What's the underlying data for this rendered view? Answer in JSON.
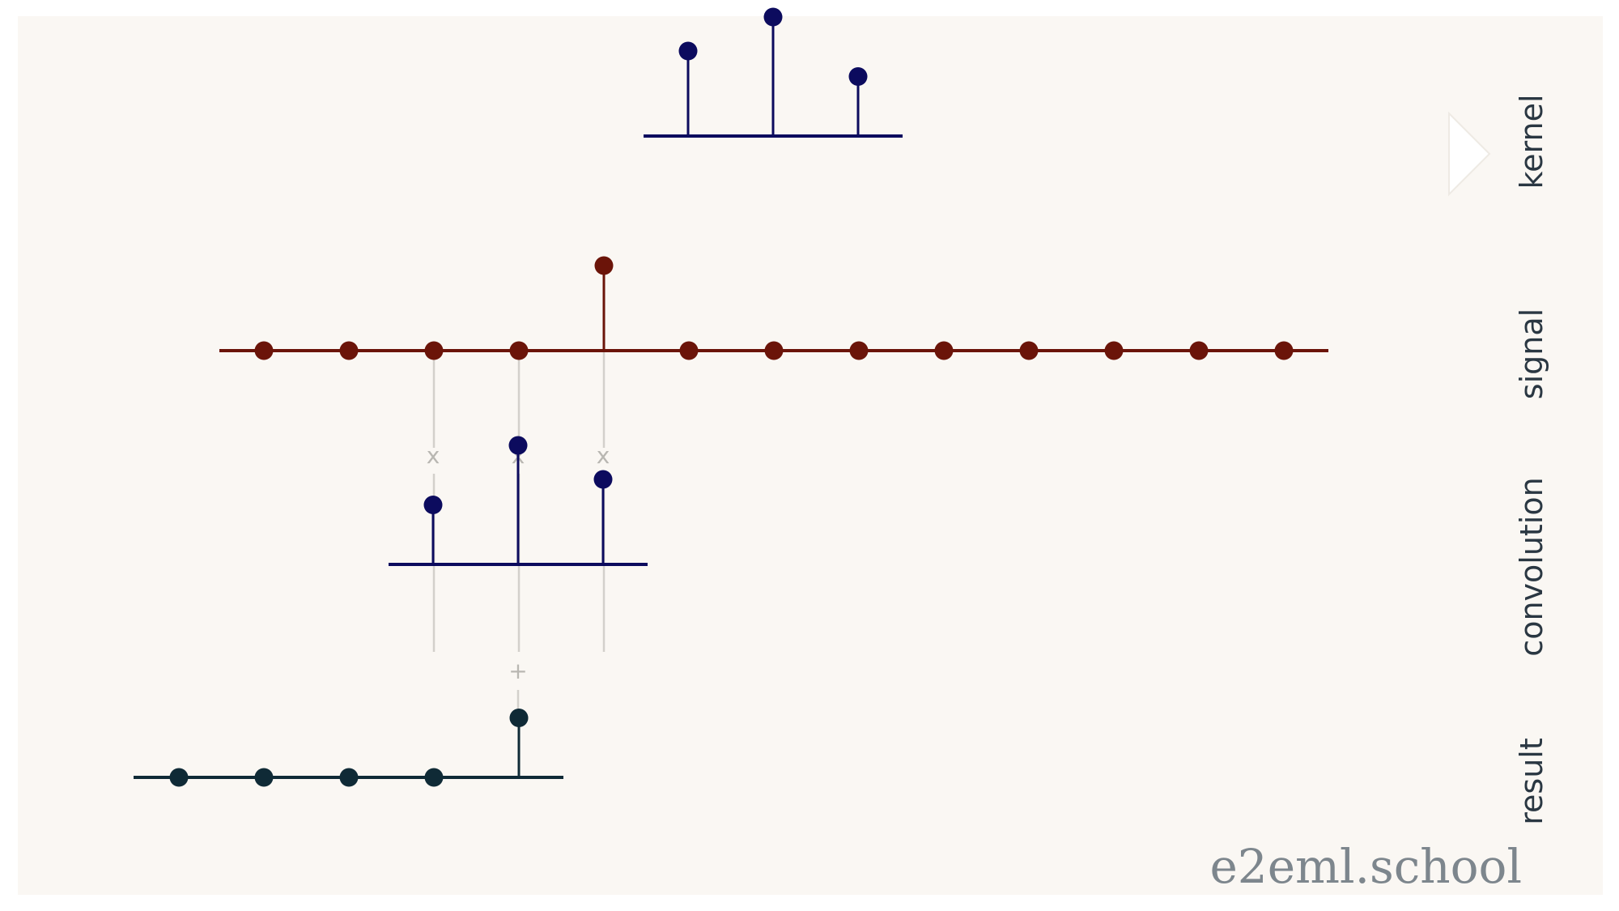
{
  "rows": [
    {
      "id": "kernel",
      "label": "kernel"
    },
    {
      "id": "signal",
      "label": "signal"
    },
    {
      "id": "convolution",
      "label": "convolution"
    },
    {
      "id": "result",
      "label": "result"
    }
  ],
  "ops": {
    "multiply": "x",
    "sum": "+"
  },
  "watermark": "e2eml.school",
  "chart_data": {
    "type": "stem",
    "kernel": {
      "values": [
        1,
        1.4,
        0.7
      ],
      "color": "#0c0b5e"
    },
    "signal": {
      "values": [
        0,
        0,
        0,
        0,
        1,
        0,
        0,
        0,
        0,
        0,
        0,
        0,
        0
      ],
      "color": "#6b1409"
    },
    "convolution": {
      "values": [
        0.7,
        1.4,
        1
      ],
      "color": "#0c0b5e",
      "aligned_signal_indices": [
        2,
        3,
        4
      ]
    },
    "result": {
      "values": [
        0,
        0,
        0,
        0,
        0.7
      ],
      "color": "#0f2a36"
    }
  },
  "colors": {
    "background": "#faf7f3",
    "guide": "#d3d0cb",
    "play_triangle": "#ffffff"
  }
}
